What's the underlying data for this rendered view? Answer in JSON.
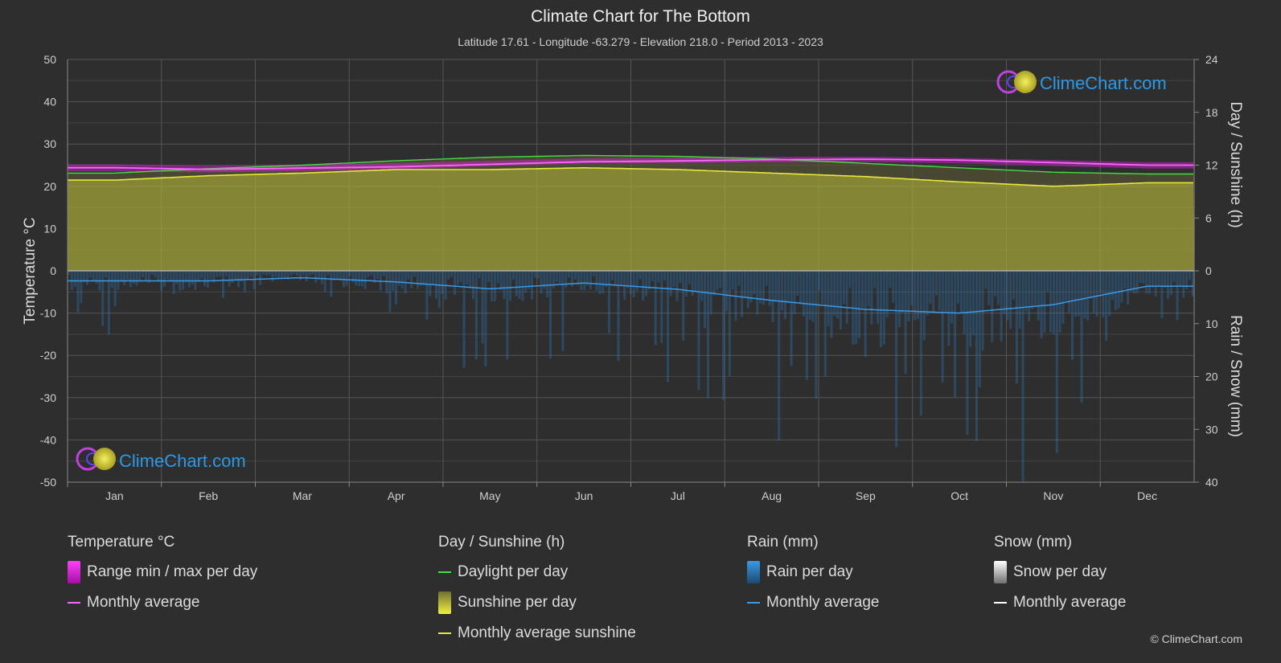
{
  "header": {
    "title": "Climate Chart for The Bottom",
    "subtitle": "Latitude 17.61 - Longitude -63.279 - Elevation 218.0 - Period 2013 - 2023"
  },
  "watermark": "ClimeChart.com",
  "copyright": "© ClimeChart.com",
  "colors": {
    "background": "#2e2e2e",
    "temp_range": "#e020e0",
    "temp_avg": "#ff66ff",
    "daylight": "#44dd44",
    "sunshine_fill": "#a8a83a",
    "sunshine_avg": "#e8e83a",
    "rain": "#2a7ac0",
    "rain_avg": "#3a9ae8",
    "snow_avg": "#ffffff",
    "brand_blue": "#2a9ae8"
  },
  "legend": {
    "temperature": {
      "heading": "Temperature °C",
      "range_label": "Range min / max per day",
      "avg_label": "Monthly average"
    },
    "sunshine": {
      "heading": "Day / Sunshine (h)",
      "daylight_label": "Daylight per day",
      "sunshine_label": "Sunshine per day",
      "avg_label": "Monthly average sunshine"
    },
    "rain": {
      "heading": "Rain (mm)",
      "rain_label": "Rain per day",
      "avg_label": "Monthly average"
    },
    "snow": {
      "heading": "Snow (mm)",
      "snow_label": "Snow per day",
      "avg_label": "Monthly average"
    }
  },
  "chart_data": {
    "type": "line",
    "categories": [
      "Jan",
      "Feb",
      "Mar",
      "Apr",
      "May",
      "Jun",
      "Jul",
      "Aug",
      "Sep",
      "Oct",
      "Nov",
      "Dec"
    ],
    "axes": {
      "left": {
        "label": "Temperature °C",
        "min": -50,
        "max": 50,
        "ticks": [
          50,
          40,
          30,
          20,
          10,
          0,
          -10,
          -20,
          -30,
          -40,
          -50
        ]
      },
      "right_top": {
        "label": "Day / Sunshine (h)",
        "min": 0,
        "max": 24,
        "ticks": [
          24,
          18,
          12,
          6,
          0
        ]
      },
      "right_bottom": {
        "label": "Rain / Snow (mm)",
        "min": 0,
        "max": 40,
        "ticks": [
          0,
          10,
          20,
          30,
          40
        ]
      }
    },
    "grid": true,
    "series": [
      {
        "name": "Range min / max per day",
        "unit": "°C",
        "min": [
          23.5,
          23.3,
          23.6,
          24.0,
          24.8,
          25.4,
          25.5,
          25.7,
          25.7,
          25.4,
          24.8,
          24.2
        ],
        "max": [
          25.2,
          24.9,
          25.1,
          25.5,
          26.0,
          26.6,
          26.8,
          27.0,
          27.0,
          26.7,
          26.2,
          25.7
        ]
      },
      {
        "name": "Monthly average",
        "unit": "°C",
        "values": [
          24.4,
          24.0,
          24.3,
          24.6,
          25.2,
          25.8,
          26.0,
          26.3,
          26.4,
          26.2,
          25.6,
          25.0
        ]
      },
      {
        "name": "Daylight per day",
        "unit": "h",
        "values": [
          11.1,
          11.6,
          12.0,
          12.5,
          12.9,
          13.1,
          13.0,
          12.7,
          12.2,
          11.7,
          11.2,
          11.0
        ]
      },
      {
        "name": "Monthly average sunshine",
        "unit": "h",
        "values": [
          10.3,
          10.8,
          11.1,
          11.5,
          11.5,
          11.7,
          11.5,
          11.1,
          10.7,
          10.1,
          9.6,
          10.0
        ]
      },
      {
        "name": "Rain per day (monthly average)",
        "unit": "mm",
        "values": [
          1.9,
          1.9,
          1.3,
          2.1,
          3.4,
          2.3,
          3.5,
          5.6,
          7.3,
          8.0,
          6.4,
          2.9
        ]
      },
      {
        "name": "Snow monthly average",
        "unit": "mm",
        "values": [
          0,
          0,
          0,
          0,
          0,
          0,
          0,
          0,
          0,
          0,
          0,
          0
        ]
      }
    ]
  }
}
